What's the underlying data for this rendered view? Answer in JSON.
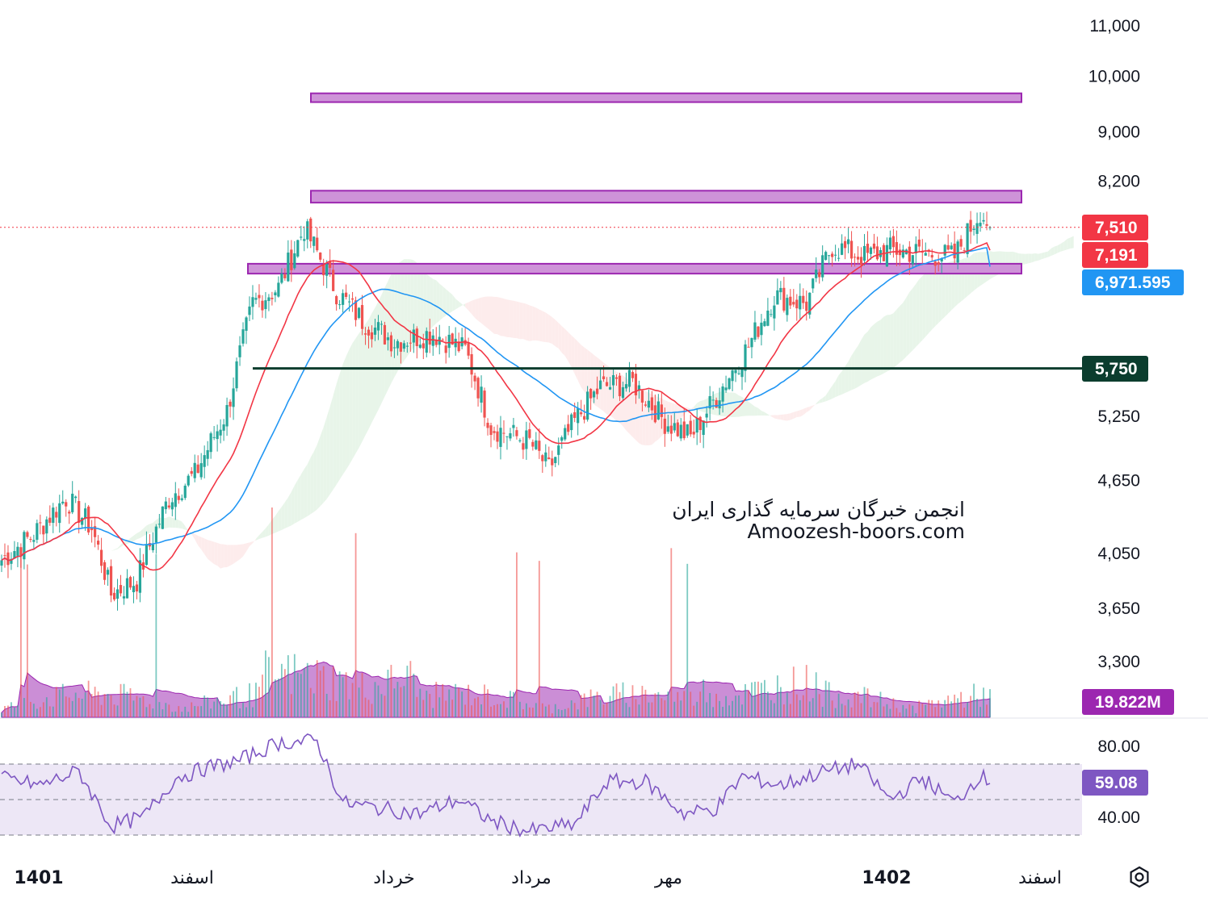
{
  "watermark": {
    "line1": "انجمن خبرگان سرمایه گذاری ایران",
    "line2": "Amoozesh-boors.com"
  },
  "colors": {
    "up": "#26a69a",
    "down": "#ef5350",
    "ma_fast": "#f23645",
    "ma_slow": "#2196f3",
    "zone_fill": "#ce93d8",
    "zone_border": "#9c27b0",
    "support": "#0b3d2e",
    "cloud_bull": "#e8f5e9",
    "cloud_bear": "#fdecec",
    "volume_area": "#ba68c8",
    "rsi_line": "#7e57c2",
    "rsi_band": "#ede7f6"
  },
  "chart_data": [
    {
      "type": "candlestick",
      "name": "price",
      "scale": "log",
      "y_ticks": [
        "11,000",
        "10,000",
        "9,000",
        "8,200",
        "5,250",
        "4,650",
        "4,050",
        "3,650",
        "3,300"
      ],
      "y_tick_values": [
        11000,
        10000,
        9000,
        8200,
        5250,
        4650,
        4050,
        3650,
        3300
      ],
      "time_labels": [
        {
          "text": "1401",
          "bold": true
        },
        {
          "text": "اسفند",
          "bold": false
        },
        {
          "text": "خرداد",
          "bold": false
        },
        {
          "text": "مرداد",
          "bold": false
        },
        {
          "text": "مهر",
          "bold": false
        },
        {
          "text": "1402",
          "bold": true
        },
        {
          "text": "اسفند",
          "bold": false
        }
      ],
      "last_price": 7510,
      "price_tags": [
        {
          "id": "last",
          "text": "7,510",
          "value": 7510,
          "color": "#f23645"
        },
        {
          "id": "ma_fast",
          "text": "7,191",
          "value": 7191,
          "color": "#f23645"
        },
        {
          "id": "ma_slow",
          "text": "6,971.595",
          "value": 6971.595,
          "color": "#2196f3"
        },
        {
          "id": "support",
          "text": "5,750",
          "value": 5750,
          "color": "#0b3d2e"
        }
      ],
      "zones": [
        {
          "low": 9520,
          "high": 9680
        },
        {
          "low": 7870,
          "high": 8050
        },
        {
          "low": 6880,
          "high": 7010
        }
      ],
      "support_line": 5750,
      "close_trend": [
        {
          "bar": 0,
          "close": 4000
        },
        {
          "bar": 10,
          "close": 4200
        },
        {
          "bar": 20,
          "close": 4500
        },
        {
          "bar": 28,
          "close": 4250
        },
        {
          "bar": 34,
          "close": 3750
        },
        {
          "bar": 42,
          "close": 3850
        },
        {
          "bar": 52,
          "close": 4500
        },
        {
          "bar": 60,
          "close": 4700
        },
        {
          "bar": 70,
          "close": 5300
        },
        {
          "bar": 78,
          "close": 6500
        },
        {
          "bar": 86,
          "close": 6700
        },
        {
          "bar": 94,
          "close": 7500
        },
        {
          "bar": 104,
          "close": 6650
        },
        {
          "bar": 112,
          "close": 6300
        },
        {
          "bar": 122,
          "close": 6050
        },
        {
          "bar": 134,
          "close": 6150
        },
        {
          "bar": 144,
          "close": 5950
        },
        {
          "bar": 152,
          "close": 5150
        },
        {
          "bar": 164,
          "close": 5000
        },
        {
          "bar": 170,
          "close": 4750
        },
        {
          "bar": 178,
          "close": 5200
        },
        {
          "bar": 186,
          "close": 5550
        },
        {
          "bar": 196,
          "close": 5600
        },
        {
          "bar": 206,
          "close": 5200
        },
        {
          "bar": 214,
          "close": 5050
        },
        {
          "bar": 222,
          "close": 5450
        },
        {
          "bar": 232,
          "close": 6000
        },
        {
          "bar": 240,
          "close": 6600
        },
        {
          "bar": 250,
          "close": 6500
        },
        {
          "bar": 258,
          "close": 7250
        },
        {
          "bar": 268,
          "close": 7100
        },
        {
          "bar": 276,
          "close": 7200
        },
        {
          "bar": 286,
          "close": 7150
        },
        {
          "bar": 296,
          "close": 7100
        },
        {
          "bar": 304,
          "close": 7750
        },
        {
          "bar": 307,
          "close": 7510
        }
      ],
      "bars": 308
    },
    {
      "type": "area",
      "name": "volume",
      "last_value_tag": "19.822M"
    },
    {
      "type": "line",
      "name": "rsi",
      "y_ticks": [
        "80.00",
        "40.00"
      ],
      "y_tick_values": [
        80,
        40
      ],
      "bands": [
        70,
        50,
        30
      ],
      "last_value": 59.08,
      "last_value_tag": "59.08",
      "trend": [
        {
          "bar": 0,
          "value": 62
        },
        {
          "bar": 12,
          "value": 58
        },
        {
          "bar": 24,
          "value": 66
        },
        {
          "bar": 34,
          "value": 35
        },
        {
          "bar": 44,
          "value": 40
        },
        {
          "bar": 54,
          "value": 62
        },
        {
          "bar": 64,
          "value": 68
        },
        {
          "bar": 74,
          "value": 72
        },
        {
          "bar": 86,
          "value": 82
        },
        {
          "bar": 98,
          "value": 83
        },
        {
          "bar": 106,
          "value": 48
        },
        {
          "bar": 118,
          "value": 45
        },
        {
          "bar": 130,
          "value": 42
        },
        {
          "bar": 142,
          "value": 50
        },
        {
          "bar": 152,
          "value": 38
        },
        {
          "bar": 164,
          "value": 32
        },
        {
          "bar": 178,
          "value": 36
        },
        {
          "bar": 188,
          "value": 60
        },
        {
          "bar": 200,
          "value": 60
        },
        {
          "bar": 212,
          "value": 42
        },
        {
          "bar": 222,
          "value": 45
        },
        {
          "bar": 230,
          "value": 63
        },
        {
          "bar": 242,
          "value": 58
        },
        {
          "bar": 254,
          "value": 65
        },
        {
          "bar": 266,
          "value": 70
        },
        {
          "bar": 276,
          "value": 50
        },
        {
          "bar": 286,
          "value": 62
        },
        {
          "bar": 296,
          "value": 48
        },
        {
          "bar": 304,
          "value": 64
        },
        {
          "bar": 307,
          "value": 59
        }
      ]
    }
  ],
  "settings_icon": "gear-icon"
}
